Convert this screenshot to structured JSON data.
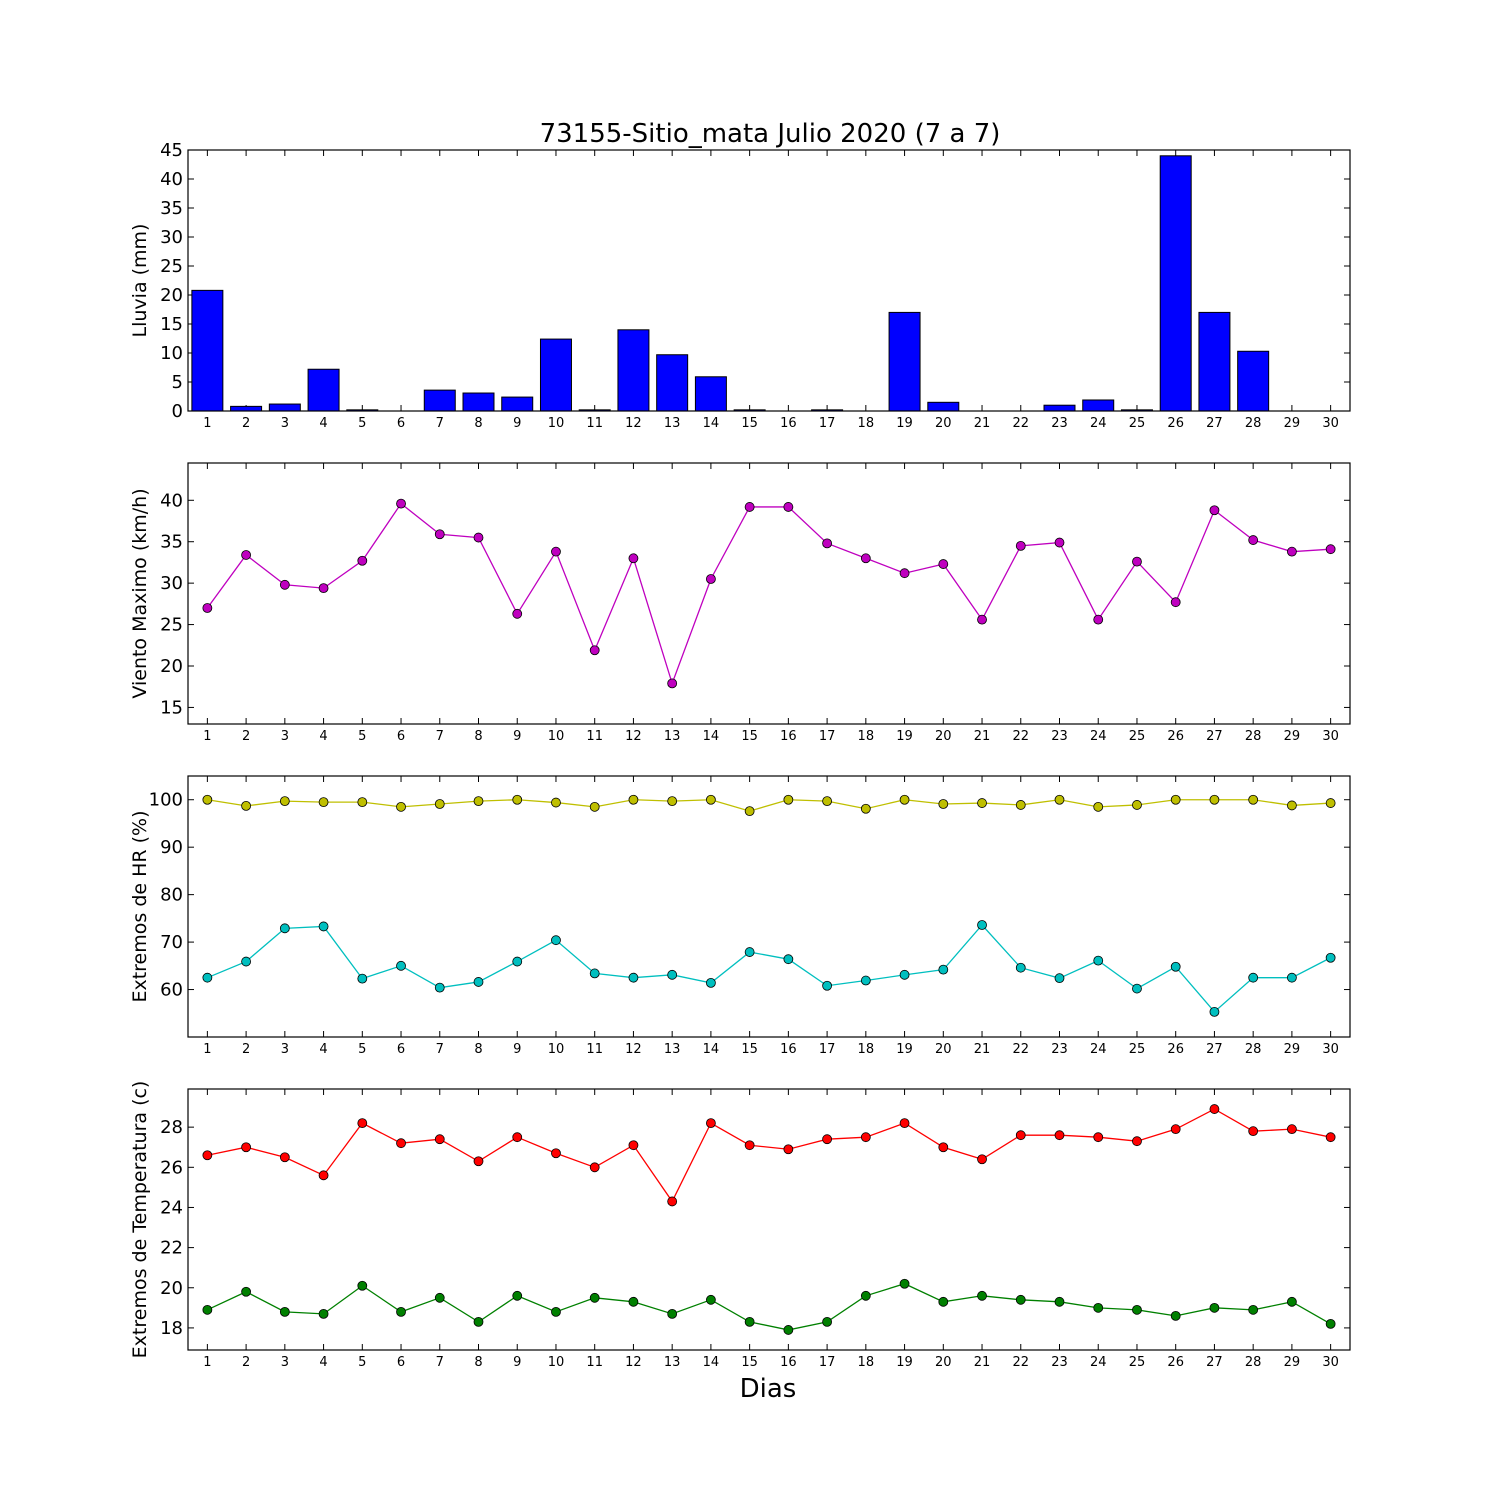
{
  "colors": {
    "bar": "#0000ff",
    "wind": "#bf00bf",
    "hr_max": "#bfbf00",
    "hr_min": "#00bfbf",
    "t_max": "#ff0000",
    "t_min": "#008000"
  },
  "chart_data": {
    "title": "73155-Sitio_mata Julio 2020  (7 a 7)",
    "xlabel": "Dias",
    "x": [
      1,
      2,
      3,
      4,
      5,
      6,
      7,
      8,
      9,
      10,
      11,
      12,
      13,
      14,
      15,
      16,
      17,
      18,
      19,
      20,
      21,
      22,
      23,
      24,
      25,
      26,
      27,
      28,
      29,
      30
    ],
    "panels": [
      {
        "type": "bar",
        "ylabel": "Lluvia (mm)",
        "ylim": [
          0,
          45
        ],
        "yticks": [
          0,
          5,
          10,
          15,
          20,
          25,
          30,
          35,
          40,
          45
        ],
        "series": [
          {
            "color_key": "bar",
            "values": [
              20.8,
              0.8,
              1.2,
              7.2,
              0.2,
              0,
              3.6,
              3.1,
              2.4,
              12.4,
              0.2,
              14,
              9.7,
              5.9,
              0.2,
              0,
              0.2,
              0,
              17,
              1.5,
              0,
              0,
              1,
              1.9,
              0.2,
              44,
              17,
              10.3,
              0,
              0
            ]
          }
        ]
      },
      {
        "type": "line",
        "ylabel": "Viento Maximo (km/h)",
        "ylim": [
          13,
          44.5
        ],
        "yticks": [
          15,
          20,
          25,
          30,
          35,
          40
        ],
        "series": [
          {
            "color_key": "wind",
            "values": [
              27,
              33.4,
              29.8,
              29.4,
              32.7,
              39.6,
              35.9,
              35.5,
              26.3,
              33.8,
              21.9,
              33,
              17.9,
              30.5,
              39.2,
              39.2,
              34.8,
              33,
              31.2,
              32.3,
              25.6,
              34.5,
              34.9,
              25.6,
              32.6,
              27.7,
              38.8,
              35.2,
              33.8,
              34.1
            ]
          }
        ]
      },
      {
        "type": "line",
        "ylabel": "Extremos de HR (%)",
        "ylim": [
          50,
          105
        ],
        "yticks": [
          60,
          70,
          80,
          90,
          100
        ],
        "series": [
          {
            "color_key": "hr_max",
            "values": [
              100,
              98.7,
              99.7,
              99.5,
              99.5,
              98.5,
              99.1,
              99.7,
              100,
              99.4,
              98.5,
              100,
              99.7,
              100,
              97.6,
              100,
              99.7,
              98.1,
              100,
              99.1,
              99.3,
              98.9,
              100,
              98.5,
              98.9,
              100,
              100,
              100,
              98.8,
              99.3
            ]
          },
          {
            "color_key": "hr_min",
            "values": [
              62.5,
              65.9,
              72.9,
              73.3,
              62.3,
              65,
              60.4,
              61.6,
              65.9,
              70.4,
              63.4,
              62.5,
              63.1,
              61.4,
              67.9,
              66.4,
              60.8,
              61.9,
              63.1,
              64.2,
              73.6,
              64.6,
              62.4,
              66.1,
              60.2,
              64.8,
              55.3,
              62.5,
              62.5,
              66.7
            ]
          }
        ]
      },
      {
        "type": "line",
        "ylabel": "Extremos de Temperatura (c)",
        "ylim": [
          16.9,
          29.9
        ],
        "yticks": [
          18,
          20,
          22,
          24,
          26,
          28
        ],
        "series": [
          {
            "color_key": "t_max",
            "values": [
              26.6,
              27,
              26.5,
              25.6,
              28.2,
              27.2,
              27.4,
              26.3,
              27.5,
              26.7,
              26,
              27.1,
              24.3,
              28.2,
              27.1,
              26.9,
              27.4,
              27.5,
              28.2,
              27,
              26.4,
              27.6,
              27.6,
              27.5,
              27.3,
              27.9,
              28.9,
              27.8,
              27.9,
              27.5
            ]
          },
          {
            "color_key": "t_min",
            "values": [
              18.9,
              19.8,
              18.8,
              18.7,
              20.1,
              18.8,
              19.5,
              18.3,
              19.6,
              18.8,
              19.5,
              19.3,
              18.7,
              19.4,
              18.3,
              17.9,
              18.3,
              19.6,
              20.2,
              19.3,
              19.6,
              19.4,
              19.3,
              19,
              18.9,
              18.6,
              19,
              18.9,
              19.3,
              18.2
            ]
          }
        ]
      }
    ]
  }
}
